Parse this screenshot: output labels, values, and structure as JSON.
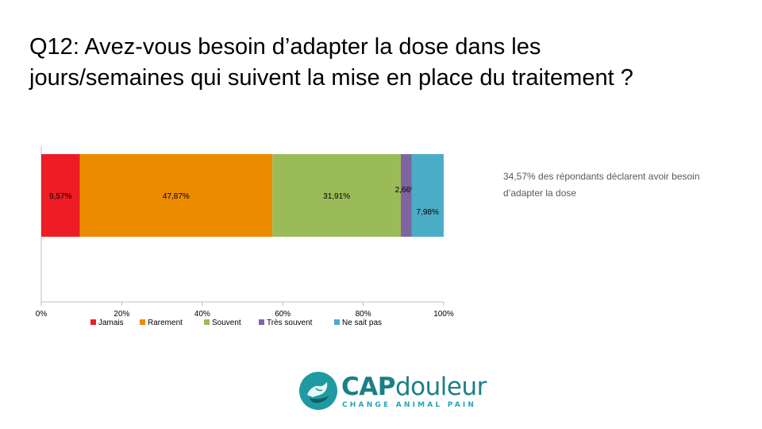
{
  "title": {
    "line1": "Q12: Avez-vous besoin d’adapter la dose dans les",
    "line2": "jours/semaines qui suivent la mise en place du traitement ?"
  },
  "note": "34,57% des répondants déclarent avoir besoin d’adapter la dose",
  "logo": {
    "name_bold": "CAP",
    "name_light": "douleur",
    "tagline": "CHANGE ANIMAL PAIN",
    "colors": {
      "circle": "#1f9aa3",
      "text": "#1b7f86"
    }
  },
  "chart_data": {
    "type": "bar",
    "orientation": "horizontal",
    "stacked": true,
    "percent": true,
    "xlim": [
      0,
      100
    ],
    "x_ticks": [
      "0%",
      "20%",
      "40%",
      "60%",
      "80%",
      "100%"
    ],
    "legend_position": "bottom",
    "grid": false,
    "series": [
      {
        "name": "Jamais",
        "values": [
          9.57
        ],
        "label": "9,57%",
        "color": "#ee1c25"
      },
      {
        "name": "Rarement",
        "values": [
          47.87
        ],
        "label": "47,87%",
        "color": "#ed8b00"
      },
      {
        "name": "Souvent",
        "values": [
          31.91
        ],
        "label": "31,91%",
        "color": "#9bbb59"
      },
      {
        "name": "Très souvent",
        "values": [
          2.66
        ],
        "label": "2,66%",
        "color": "#8064a2"
      },
      {
        "name": "Ne sait pas",
        "values": [
          7.98
        ],
        "label": "7,98%",
        "color": "#4bacc6"
      }
    ]
  }
}
